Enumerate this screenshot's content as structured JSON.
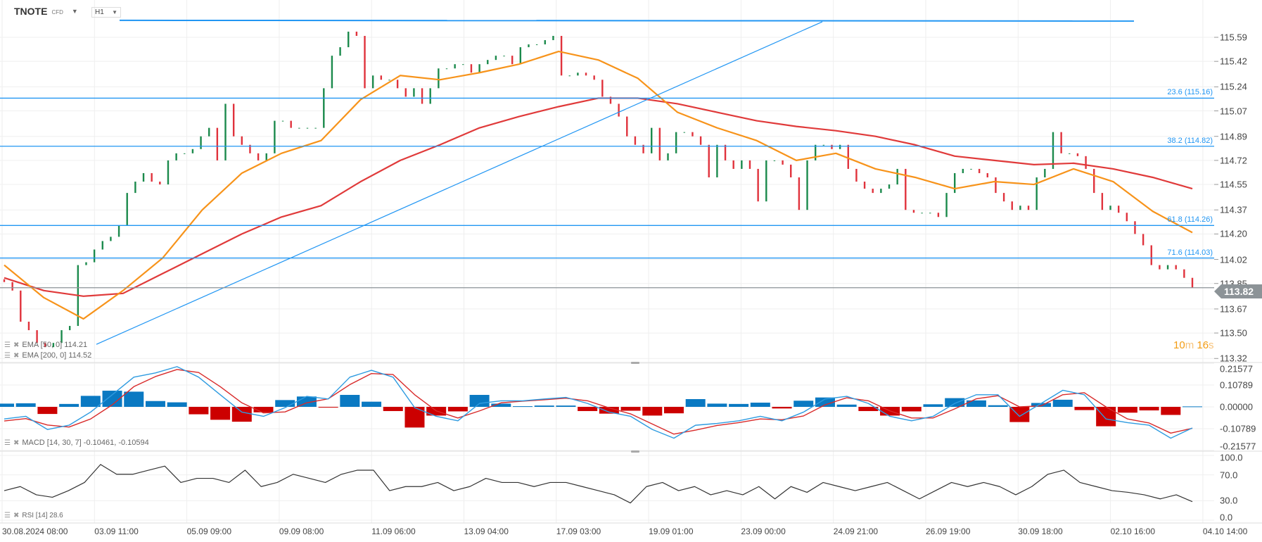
{
  "header": {
    "symbol": "TNOTE",
    "instrument_type": "CFD",
    "timeframe": "H1"
  },
  "price_axis": {
    "ticks": [
      "115.59",
      "115.42",
      "115.24",
      "115.07",
      "114.89",
      "114.72",
      "114.55",
      "114.37",
      "114.20",
      "114.02",
      "113.85",
      "113.67",
      "113.50",
      "113.32"
    ]
  },
  "fib_levels": [
    {
      "label": "23.6 (115.16)",
      "price": 115.16
    },
    {
      "label": "38.2 (114.82)",
      "price": 114.82
    },
    {
      "label": "61.8 (114.26)",
      "price": 114.26
    },
    {
      "label": "71.6 (114.03)",
      "price": 114.03
    }
  ],
  "drawings": {
    "top_level_price": 115.71,
    "trendline": {
      "from_price": 113.42,
      "to_price": 115.7
    }
  },
  "current_price": "113.82",
  "timer": {
    "min": "10",
    "min_unit": "m",
    "sec": "16",
    "sec_unit": "s"
  },
  "legends": {
    "ema50": "EMA [50, 0] 114.21",
    "ema200": "EMA [200, 0] 114.52",
    "macd": "MACD [14, 30, 7] -0.10461,  -0.10594",
    "rsi": "RSI [14] 28.6"
  },
  "macd_axis": {
    "ticks": [
      "0.21577",
      "0.10789",
      "0.00000",
      "-0.10789",
      "-0.21577"
    ]
  },
  "rsi_axis": {
    "ticks": [
      "100.0",
      "70.0",
      "30.0",
      "0.0"
    ]
  },
  "x_axis": {
    "labels": [
      "30.08.2024  08:00",
      "03.09  11:00",
      "05.09  09:00",
      "09.09  08:00",
      "11.09  06:00",
      "13.09  04:00",
      "17.09  03:00",
      "19.09  01:00",
      "23.09  00:00",
      "24.09  21:00",
      "26.09  19:00",
      "30.09  18:00",
      "02.10  16:00",
      "04.10  14:00"
    ]
  },
  "colors": {
    "up": "#1b8a4c",
    "down": "#e0323c",
    "ema50": "#f7931a",
    "ema200": "#e03a3a",
    "fib": "#2196f3",
    "macd": "#2e9be0",
    "signal": "#d82a2a",
    "hist_pos": "#0a79c2",
    "hist_neg": "#cc0000",
    "rsi": "#333333"
  },
  "chart_data": {
    "type": "candlestick",
    "ylim": [
      113.32,
      115.59
    ],
    "closes": [
      113.86,
      113.8,
      113.58,
      113.52,
      113.43,
      113.4,
      113.43,
      113.52,
      113.55,
      113.98,
      114.0,
      114.09,
      114.15,
      114.18,
      114.26,
      114.49,
      114.57,
      114.63,
      114.57,
      114.55,
      114.72,
      114.77,
      114.77,
      114.8,
      114.89,
      114.95,
      114.72,
      115.12,
      114.89,
      114.83,
      114.77,
      114.72,
      114.77,
      115.0,
      115.0,
      114.95,
      114.95,
      114.95,
      114.95,
      115.23,
      115.46,
      115.52,
      115.63,
      115.6,
      115.23,
      115.32,
      115.29,
      115.29,
      115.23,
      115.17,
      115.23,
      115.12,
      115.23,
      115.37,
      115.37,
      115.4,
      115.4,
      115.34,
      115.4,
      115.43,
      115.46,
      115.46,
      115.4,
      115.52,
      115.54,
      115.54,
      115.57,
      115.6,
      115.32,
      115.32,
      115.34,
      115.32,
      115.29,
      115.17,
      115.12,
      115.03,
      114.89,
      114.83,
      114.77,
      114.95,
      114.72,
      114.77,
      114.92,
      114.92,
      114.89,
      114.83,
      114.6,
      114.83,
      114.72,
      114.66,
      114.72,
      114.66,
      114.43,
      114.72,
      114.72,
      114.69,
      114.6,
      114.37,
      114.72,
      114.83,
      114.83,
      114.8,
      114.83,
      114.66,
      114.57,
      114.52,
      114.49,
      114.52,
      114.55,
      114.66,
      114.37,
      114.35,
      114.35,
      114.35,
      114.32,
      114.49,
      114.63,
      114.66,
      114.66,
      114.63,
      114.6,
      114.49,
      114.43,
      114.37,
      114.4,
      114.37,
      114.6,
      114.66,
      114.92,
      114.77,
      114.77,
      114.75,
      114.66,
      114.49,
      114.37,
      114.4,
      114.35,
      114.29,
      114.2,
      114.12,
      113.98,
      113.95,
      113.98,
      113.95,
      113.89,
      113.82
    ],
    "ema50": [
      113.98,
      113.75,
      113.6,
      113.8,
      114.03,
      114.37,
      114.63,
      114.77,
      114.86,
      115.15,
      115.32,
      115.29,
      115.34,
      115.4,
      115.49,
      115.43,
      115.3,
      115.06,
      114.95,
      114.86,
      114.72,
      114.77,
      114.66,
      114.6,
      114.52,
      114.57,
      114.55,
      114.66,
      114.57,
      114.36,
      114.21
    ],
    "ema200": [
      113.89,
      113.8,
      113.76,
      113.78,
      113.92,
      114.06,
      114.2,
      114.32,
      114.4,
      114.57,
      114.72,
      114.83,
      114.95,
      115.03,
      115.1,
      115.16,
      115.16,
      115.12,
      115.06,
      115.0,
      114.96,
      114.93,
      114.89,
      114.83,
      114.75,
      114.72,
      114.69,
      114.7,
      114.66,
      114.6,
      114.52
    ],
    "macd": {
      "ylim": [
        -0.21577,
        0.21577
      ],
      "macd": [
        -0.06,
        -0.047,
        -0.112,
        -0.091,
        -0.026,
        0.06,
        0.147,
        0.168,
        0.199,
        0.147,
        0.06,
        -0.026,
        -0.047,
        -0.004,
        0.052,
        0.039,
        0.147,
        0.181,
        0.147,
        -0.004,
        -0.047,
        -0.069,
        0.017,
        0.03,
        0.03,
        0.039,
        0.047,
        0.017,
        -0.026,
        -0.047,
        -0.112,
        -0.155,
        -0.091,
        -0.082,
        -0.069,
        -0.047,
        -0.069,
        -0.026,
        0.039,
        0.052,
        0.017,
        -0.047,
        -0.069,
        -0.047,
        0.017,
        0.06,
        0.06,
        -0.047,
        0.017,
        0.082,
        0.06,
        -0.06,
        -0.078,
        -0.091,
        -0.155,
        -0.10461
      ],
      "signal": [
        -0.07,
        -0.058,
        -0.09,
        -0.1,
        -0.06,
        0.01,
        0.1,
        0.15,
        0.185,
        0.17,
        0.1,
        0.02,
        -0.03,
        -0.025,
        0.02,
        0.04,
        0.11,
        0.165,
        0.16,
        0.06,
        -0.02,
        -0.055,
        -0.02,
        0.02,
        0.028,
        0.035,
        0.043,
        0.03,
        -0.005,
        -0.035,
        -0.085,
        -0.135,
        -0.115,
        -0.092,
        -0.078,
        -0.06,
        -0.064,
        -0.045,
        0.01,
        0.045,
        0.03,
        -0.02,
        -0.055,
        -0.055,
        -0.01,
        0.04,
        0.055,
        0.0,
        0.005,
        0.06,
        0.07,
        0.0,
        -0.06,
        -0.08,
        -0.13,
        -0.10594
      ]
    },
    "rsi": {
      "ylim": [
        0,
        100
      ],
      "values": [
        45.6,
        51.9,
        39.2,
        35.4,
        45.6,
        58.2,
        86.0,
        70.9,
        70.9,
        77.2,
        83.5,
        58.2,
        64.6,
        64.6,
        58.2,
        77.2,
        51.9,
        58.2,
        70.9,
        64.6,
        58.2,
        70.9,
        77.2,
        77.2,
        45.6,
        51.9,
        51.9,
        58.2,
        45.6,
        51.9,
        64.6,
        58.2,
        58.2,
        51.9,
        58.2,
        58.2,
        51.9,
        45.6,
        39.2,
        26.6,
        51.9,
        58.2,
        45.6,
        51.9,
        39.2,
        45.6,
        39.2,
        51.9,
        32.9,
        51.9,
        43.0,
        58.2,
        51.9,
        45.6,
        51.9,
        58.2,
        45.6,
        32.9,
        45.6,
        58.2,
        51.9,
        58.2,
        51.9,
        39.2,
        51.9,
        70.9,
        77.2,
        58.2,
        51.9,
        45.6,
        43.0,
        39.2,
        32.9,
        39.2,
        28.6
      ]
    }
  }
}
